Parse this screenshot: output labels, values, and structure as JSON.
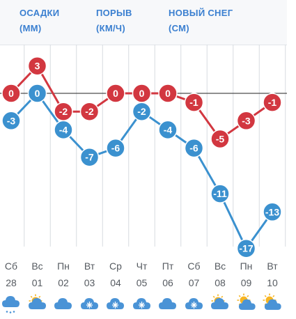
{
  "header": {
    "precip_title": "ОСАДКИ",
    "precip_unit": "(ММ)",
    "gust_title": "ПОРЫВ",
    "gust_unit": "(КМ/Ч)",
    "snow_title": "НОВЫЙ СНЕГ",
    "snow_unit": "(СМ)"
  },
  "colors": {
    "max": "#d23740",
    "min": "#3b91cf",
    "zero": "#222222"
  },
  "chart_data": {
    "type": "line",
    "categories": [
      "Сб 28",
      "Вс 01",
      "Пн 02",
      "Вт 03",
      "Ср 04",
      "Чт 05",
      "Пт 06",
      "Сб 07",
      "Вс 08",
      "Пн 09",
      "Вт 10"
    ],
    "x_days": [
      "Сб",
      "Вс",
      "Пн",
      "Вт",
      "Ср",
      "Чт",
      "Пт",
      "Сб",
      "Вс",
      "Пн",
      "Вт"
    ],
    "x_dates": [
      "28",
      "01",
      "02",
      "03",
      "04",
      "05",
      "06",
      "07",
      "08",
      "09",
      "10"
    ],
    "series": [
      {
        "color": "#d23740",
        "values": [
          0,
          3,
          -2,
          -2,
          0,
          0,
          0,
          -1,
          -5,
          -3,
          -1
        ]
      },
      {
        "color": "#3b91cf",
        "values": [
          -3,
          0,
          -4,
          -7,
          -6,
          -2,
          -4,
          -6,
          -11,
          -17,
          -13
        ]
      }
    ],
    "zero_line": true,
    "grid": "vertical"
  },
  "weather_icons": [
    "snow-cloud-icon",
    "partly-sunny-icon",
    "cloud-icon",
    "snowflake-cloud-icon",
    "snowflake-cloud-icon",
    "snowflake-cloud-icon",
    "cloud-icon",
    "snowflake-cloud-icon",
    "partly-sunny-icon",
    "sunny-cloud-icon",
    "sunny-cloud-icon"
  ]
}
